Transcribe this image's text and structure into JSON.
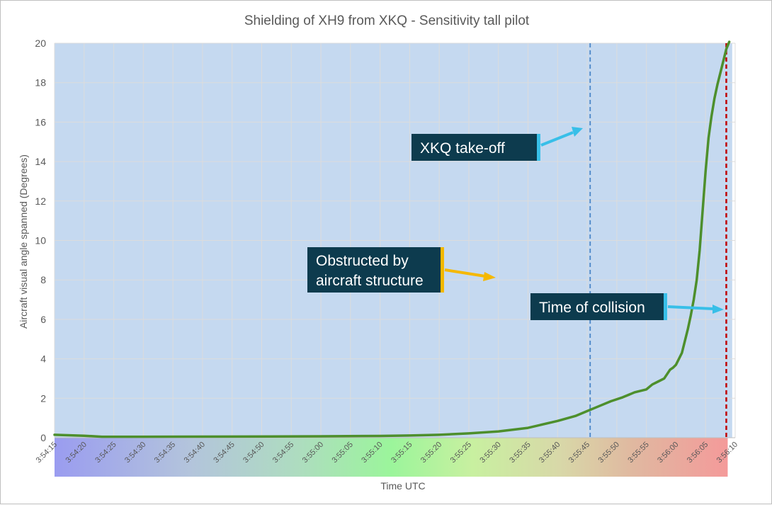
{
  "chart_data": {
    "type": "line",
    "title": "Shielding of XH9 from XKQ - Sensitivity tall pilot",
    "xlabel": "Time UTC",
    "ylabel": "Aircraft visual angle spanned (Degrees)",
    "ylim": [
      0,
      20
    ],
    "yticks": [
      0,
      2,
      4,
      6,
      8,
      10,
      12,
      14,
      16,
      18,
      20
    ],
    "xlim_seconds": [
      0,
      115
    ],
    "xtick_labels": [
      "3:54:15",
      "3:54:20",
      "3:54:25",
      "3:54:30",
      "3:54:35",
      "3:54:40",
      "3:54:45",
      "3:54:50",
      "3:54:55",
      "3:55:00",
      "3:55:05",
      "3:55:10",
      "3:55:15",
      "3:55:20",
      "3:55:25",
      "3:55:30",
      "3:55:35",
      "3:55:40",
      "3:55:45",
      "3:55:50",
      "3:55:55",
      "3:56:00",
      "3:56:05",
      "3:56:10"
    ],
    "grid": true,
    "series": [
      {
        "name": "Aircraft visual angle spanned",
        "color": "#4d8f2c",
        "x": [
          0,
          5,
          8,
          15,
          30,
          45,
          55,
          60,
          65,
          70,
          75,
          80,
          85,
          88,
          90,
          92,
          94,
          96,
          98,
          100,
          101,
          102,
          103,
          104,
          104.5,
          105,
          106,
          107,
          107.5,
          108,
          108.5,
          109,
          109.5,
          110,
          110.5,
          111,
          111.5,
          112,
          112.5,
          113,
          113.5,
          114
        ],
        "values": [
          0.15,
          0.1,
          0.05,
          0.05,
          0.06,
          0.07,
          0.09,
          0.11,
          0.15,
          0.22,
          0.32,
          0.5,
          0.85,
          1.1,
          1.35,
          1.6,
          1.85,
          2.05,
          2.3,
          2.45,
          2.7,
          2.85,
          3.0,
          3.45,
          3.55,
          3.7,
          4.3,
          5.5,
          6.2,
          7.0,
          8.0,
          9.5,
          11.5,
          13.5,
          15.2,
          16.3,
          17.2,
          17.9,
          18.5,
          19.1,
          19.7,
          20.5
        ]
      }
    ],
    "reference_lines": [
      {
        "name": "XKQ take-off",
        "x": 90.5,
        "color": "#4a86c8",
        "style": "dashed"
      },
      {
        "name": "Time of collision",
        "x": 113.5,
        "color": "#c00000",
        "style": "dashed"
      }
    ],
    "shaded_region": {
      "name": "Obstructed by aircraft structure",
      "x_from": 0,
      "x_to": 114.5,
      "color": "#c5d9f0"
    },
    "annotations": [
      {
        "name": "xkq-takeoff",
        "text": "XKQ take-off",
        "accent": "#38bfe8"
      },
      {
        "name": "obstructed",
        "text": "Obstructed by aircraft structure",
        "lines": [
          "Obstructed by",
          "aircraft structure"
        ],
        "accent": "#f5b800"
      },
      {
        "name": "collision",
        "text": "Time of collision",
        "accent": "#38bfe8"
      }
    ]
  }
}
